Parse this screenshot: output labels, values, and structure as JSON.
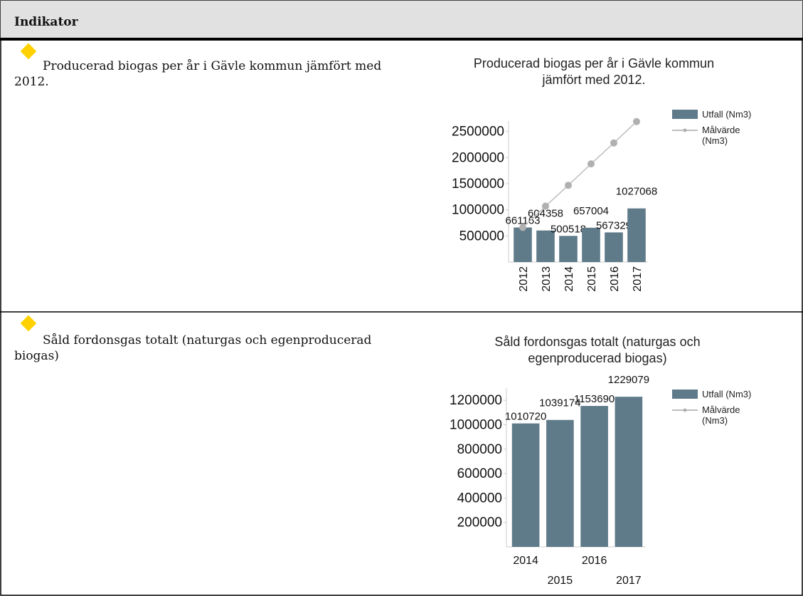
{
  "header": {
    "title": "Indikator"
  },
  "rows": [
    {
      "label": "Producerad biogas per år i Gävle kommun jämfört med 2012."
    },
    {
      "label": "Såld fordonsgas totalt (naturgas och egenproducerad biogas)"
    }
  ],
  "chart_data": [
    {
      "type": "bar",
      "title": "Producerad biogas per år i Gävle kommun jämfört med 2012.",
      "categories": [
        "2012",
        "2013",
        "2014",
        "2015",
        "2016",
        "2017"
      ],
      "series": [
        {
          "name": "Utfall (Nm3)",
          "color": "#5f7a89",
          "type": "bar",
          "values": [
            661163,
            604358,
            500518,
            657004,
            567329,
            1027068
          ]
        },
        {
          "name": "Målvärde (Nm3)",
          "color": "#bdbdbd",
          "type": "line",
          "values": [
            661163,
            1070000,
            1470000,
            1880000,
            2280000,
            2690000
          ]
        }
      ],
      "ylim": [
        0,
        2700000
      ],
      "yticks": [
        500000,
        1000000,
        1500000,
        2000000,
        2500000
      ],
      "x_label_rotation": true
    },
    {
      "type": "bar",
      "title": "Såld fordonsgas totalt (naturgas och egenproducerad biogas)",
      "categories": [
        "2014",
        "2015",
        "2016",
        "2017"
      ],
      "series": [
        {
          "name": "Utfall (Nm3)",
          "color": "#5f7a89",
          "type": "bar",
          "values": [
            1010720,
            1039174,
            1153690,
            1229079
          ]
        },
        {
          "name": "Målvärde (Nm3)",
          "color": "#bdbdbd",
          "type": "line",
          "values": [
            null,
            null,
            null,
            null
          ]
        }
      ],
      "ylim": [
        0,
        1300000
      ],
      "yticks": [
        200000,
        400000,
        600000,
        800000,
        1000000,
        1200000
      ],
      "x_label_rotation": false
    }
  ]
}
